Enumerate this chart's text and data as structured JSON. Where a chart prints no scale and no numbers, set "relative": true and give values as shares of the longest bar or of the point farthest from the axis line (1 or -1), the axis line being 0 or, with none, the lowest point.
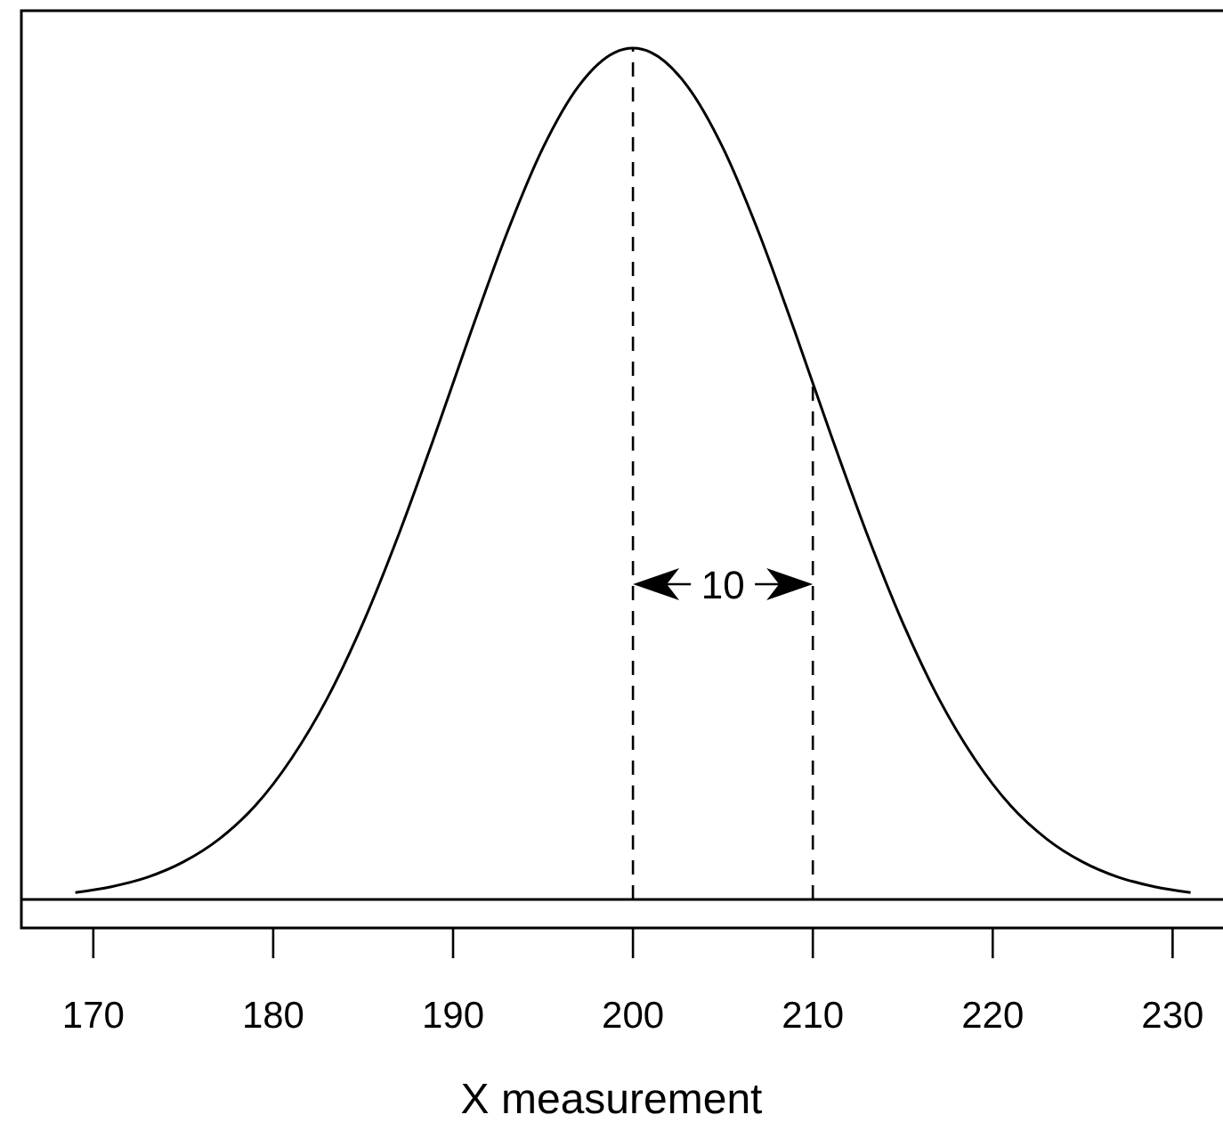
{
  "chart_data": {
    "type": "line",
    "relative": true,
    "xlabel": "X measurement",
    "xlim": [
      166,
      233
    ],
    "xticks": [
      170,
      180,
      190,
      200,
      210,
      220,
      230
    ],
    "tick_labels": "x",
    "grid": false,
    "line_style": "solid",
    "x": [
      169,
      171,
      173,
      175,
      177,
      179,
      181,
      183,
      185,
      187,
      189,
      191,
      193,
      195,
      197,
      199,
      200,
      201,
      203,
      205,
      207,
      209,
      211,
      213,
      215,
      217,
      219,
      221,
      223,
      225,
      227,
      229,
      231
    ],
    "series": [
      {
        "color": "#000000",
        "values": [
          0.008,
          0.015,
          0.026,
          0.044,
          0.071,
          0.11,
          0.165,
          0.236,
          0.325,
          0.43,
          0.546,
          0.667,
          0.783,
          0.883,
          0.956,
          0.995,
          1,
          0.995,
          0.956,
          0.883,
          0.783,
          0.667,
          0.546,
          0.43,
          0.325,
          0.236,
          0.165,
          0.11,
          0.071,
          0.044,
          0.026,
          0.015,
          0.008
        ]
      }
    ],
    "ref_lines": [
      {
        "axis": "x",
        "value": 200,
        "line_style": "dashed",
        "color": "#000000"
      },
      {
        "axis": "x",
        "value": 210,
        "line_style": "dashed",
        "color": "#000000"
      }
    ],
    "annotations": [
      "10"
    ]
  }
}
